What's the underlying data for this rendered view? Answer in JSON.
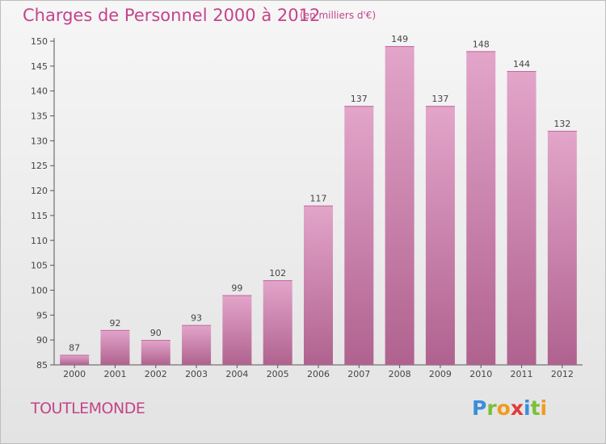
{
  "header": {
    "title": "Charges de Personnel 2000 à 2012",
    "subtitle": "(en milliers d'€)"
  },
  "footer": {
    "commune": "TOUTLEMONDE",
    "logo_letters": [
      {
        "char": "P",
        "color": "#3a8fd8"
      },
      {
        "char": "r",
        "color": "#7bbf3a"
      },
      {
        "char": "o",
        "color": "#f29a1f"
      },
      {
        "char": "x",
        "color": "#e23a3a"
      },
      {
        "char": "i",
        "color": "#3a8fd8"
      },
      {
        "char": "t",
        "color": "#7bbf3a"
      },
      {
        "char": "i",
        "color": "#f29a1f"
      }
    ]
  },
  "chart_data": {
    "type": "bar",
    "categories": [
      "2000",
      "2001",
      "2002",
      "2003",
      "2004",
      "2005",
      "2006",
      "2007",
      "2008",
      "2009",
      "2010",
      "2011",
      "2012"
    ],
    "values": [
      87,
      92,
      90,
      93,
      99,
      102,
      117,
      137,
      149,
      137,
      148,
      144,
      132
    ],
    "ylim": [
      85,
      150
    ],
    "yticks": [
      85,
      90,
      95,
      100,
      105,
      110,
      115,
      120,
      125,
      130,
      135,
      140,
      145,
      150
    ],
    "grid": false,
    "bar_color": "#d98ab6",
    "axis_color": "#555555"
  }
}
